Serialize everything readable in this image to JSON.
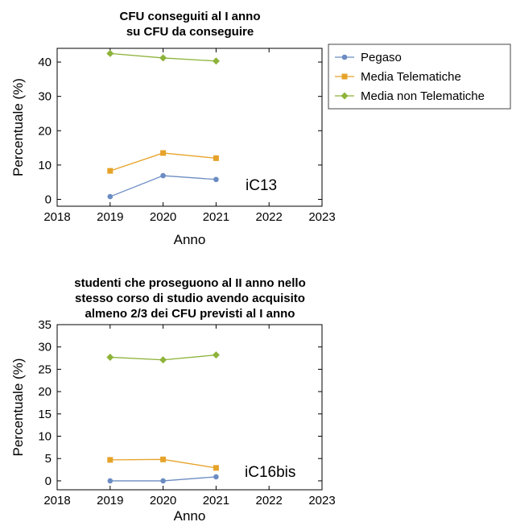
{
  "chart_data": [
    {
      "type": "line",
      "title": [
        "CFU conseguiti al I anno",
        "su CFU da conseguire"
      ],
      "xlabel": "Anno",
      "ylabel": "Percentuale (%)",
      "annotation": "iC13",
      "xlim": [
        2018,
        2023
      ],
      "ylim": [
        -2,
        44
      ],
      "x_ticks": [
        2018,
        2019,
        2020,
        2021,
        2022,
        2023
      ],
      "y_ticks": [
        0,
        10,
        20,
        30,
        40
      ],
      "x": [
        2019,
        2020,
        2021
      ],
      "series": [
        {
          "name": "Pegaso",
          "values": [
            0.8,
            6.9,
            5.8
          ],
          "color": "#6b8cc2",
          "marker": "circle"
        },
        {
          "name": "Media Telematiche",
          "values": [
            8.3,
            13.5,
            12.0
          ],
          "color": "#e6a32a",
          "marker": "square"
        },
        {
          "name": "Media non Telematiche",
          "values": [
            42.5,
            41.2,
            40.3
          ],
          "color": "#8db33a",
          "marker": "diamond"
        }
      ],
      "legend": "right"
    },
    {
      "type": "line",
      "title": [
        "studenti che proseguono al II anno nello",
        "stesso corso di studio avendo acquisito",
        "almeno 2/3 dei CFU previsti al I anno"
      ],
      "xlabel": "Anno",
      "ylabel": "Percentuale (%)",
      "annotation": "iC16bis",
      "xlim": [
        2018,
        2023
      ],
      "ylim": [
        -2,
        35
      ],
      "x_ticks": [
        2018,
        2019,
        2020,
        2021,
        2022,
        2023
      ],
      "y_ticks": [
        0,
        5,
        10,
        15,
        20,
        25,
        30,
        35
      ],
      "x": [
        2019,
        2020,
        2021
      ],
      "series": [
        {
          "name": "Pegaso",
          "values": [
            0.0,
            0.0,
            0.9
          ],
          "color": "#6b8cc2",
          "marker": "circle"
        },
        {
          "name": "Media Telematiche",
          "values": [
            4.7,
            4.8,
            2.9
          ],
          "color": "#e6a32a",
          "marker": "square"
        },
        {
          "name": "Media non Telematiche",
          "values": [
            27.7,
            27.1,
            28.2
          ],
          "color": "#8db33a",
          "marker": "diamond"
        }
      ]
    }
  ]
}
